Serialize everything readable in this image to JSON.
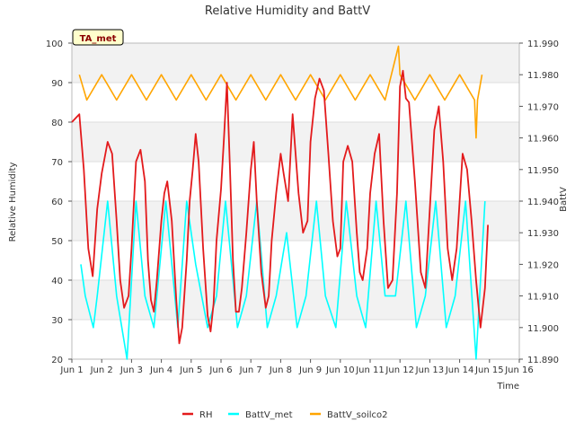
{
  "chart_data": {
    "type": "line",
    "title": "Relative Humidity and BattV",
    "xlabel": "Time",
    "ylabel_left": "Relative Humidity",
    "ylabel_right": "BattV",
    "annotation": "TA_met",
    "x_range": [
      1,
      16
    ],
    "x_ticks": [
      "Jun 1",
      "Jun 2",
      "Jun 3",
      "Jun 4",
      "Jun 5",
      "Jun 6",
      "Jun 7",
      "Jun 8",
      "Jun 9",
      "Jun 10",
      "Jun 11",
      "Jun 12",
      "Jun 13",
      "Jun 14",
      "Jun 15",
      "Jun 16"
    ],
    "y_left_range": [
      20,
      100
    ],
    "y_left_ticks": [
      "20",
      "30",
      "40",
      "50",
      "60",
      "70",
      "80",
      "90",
      "100"
    ],
    "y_right_range": [
      11.89,
      11.99
    ],
    "y_right_ticks": [
      "11.890",
      "11.900",
      "11.910",
      "11.920",
      "11.930",
      "11.940",
      "11.950",
      "11.960",
      "11.970",
      "11.980",
      "11.990"
    ],
    "grid": true,
    "legend_position": "bottom",
    "colors": {
      "RH": "#e31a1c",
      "BattV_met": "#00ffff",
      "BattV_soilco2": "#ffa500",
      "band": "#f2f2f2",
      "grid": "#dddddd"
    },
    "series": [
      {
        "name": "RH",
        "axis": "left",
        "x": [
          1.0,
          1.25,
          1.4,
          1.55,
          1.7,
          1.85,
          2.0,
          2.2,
          2.35,
          2.5,
          2.62,
          2.75,
          2.9,
          3.0,
          3.15,
          3.3,
          3.45,
          3.55,
          3.65,
          3.75,
          3.85,
          4.0,
          4.1,
          4.2,
          4.35,
          4.5,
          4.6,
          4.7,
          4.85,
          4.95,
          5.05,
          5.15,
          5.25,
          5.4,
          5.55,
          5.65,
          5.75,
          5.85,
          6.0,
          6.1,
          6.2,
          6.3,
          6.4,
          6.5,
          6.6,
          6.7,
          6.85,
          7.0,
          7.1,
          7.2,
          7.35,
          7.5,
          7.6,
          7.7,
          7.85,
          8.0,
          8.1,
          8.25,
          8.4,
          8.5,
          8.6,
          8.75,
          8.9,
          9.0,
          9.15,
          9.3,
          9.45,
          9.6,
          9.75,
          9.9,
          10.0,
          10.1,
          10.25,
          10.4,
          10.55,
          10.65,
          10.75,
          10.9,
          11.0,
          11.15,
          11.3,
          11.45,
          11.6,
          11.75,
          11.9,
          12.0,
          12.1,
          12.2,
          12.3,
          12.5,
          12.7,
          12.85,
          13.0,
          13.15,
          13.3,
          13.45,
          13.6,
          13.75,
          13.9,
          14.0,
          14.1,
          14.25,
          14.4,
          14.55,
          14.7,
          14.85,
          14.95
        ],
        "values": [
          80,
          82,
          68,
          48,
          41,
          58,
          67,
          75,
          72,
          55,
          40,
          33,
          36,
          48,
          70,
          73,
          65,
          45,
          35,
          32,
          40,
          55,
          62,
          65,
          55,
          35,
          24,
          28,
          45,
          60,
          68,
          77,
          70,
          48,
          31,
          27,
          34,
          50,
          63,
          76,
          90,
          68,
          45,
          32,
          32,
          38,
          52,
          68,
          75,
          60,
          42,
          33,
          36,
          50,
          62,
          72,
          67,
          60,
          82,
          72,
          62,
          52,
          55,
          75,
          86,
          91,
          88,
          72,
          55,
          46,
          48,
          70,
          74,
          70,
          52,
          42,
          40,
          48,
          62,
          72,
          77,
          55,
          38,
          40,
          62,
          89,
          93,
          86,
          85,
          65,
          42,
          38,
          58,
          78,
          84,
          70,
          48,
          40,
          48,
          60,
          72,
          68,
          55,
          40,
          28,
          38,
          54
        ]
      },
      {
        "name": "BattV_met",
        "axis": "left",
        "x": [
          1.3,
          1.45,
          1.72,
          1.85,
          2.2,
          2.5,
          2.85,
          3.15,
          3.45,
          3.75,
          3.85,
          4.15,
          4.55,
          4.85,
          5.15,
          5.55,
          5.85,
          6.15,
          6.55,
          6.85,
          7.2,
          7.55,
          7.85,
          8.2,
          8.55,
          8.85,
          9.2,
          9.5,
          9.85,
          10.2,
          10.55,
          10.85,
          11.2,
          11.5,
          11.85,
          12.2,
          12.55,
          12.85,
          13.2,
          13.55,
          13.85,
          14.2,
          14.55,
          14.85
        ],
        "values": [
          44,
          36,
          28,
          36,
          60,
          36,
          20,
          60,
          36,
          28,
          36,
          60,
          28,
          60,
          44,
          28,
          36,
          60,
          28,
          36,
          60,
          28,
          36,
          52,
          28,
          36,
          60,
          36,
          28,
          60,
          36,
          28,
          60,
          36,
          36,
          60,
          28,
          36,
          60,
          28,
          36,
          60,
          20,
          60
        ]
      },
      {
        "name": "BattV_soilco2",
        "axis": "right",
        "x": [
          1.25,
          1.5,
          2.0,
          2.5,
          3.0,
          3.5,
          4.0,
          4.5,
          5.0,
          5.5,
          6.0,
          6.5,
          7.0,
          7.5,
          8.0,
          8.5,
          9.0,
          9.5,
          10.0,
          10.5,
          11.0,
          11.5,
          11.95,
          12.0,
          12.5,
          13.0,
          13.5,
          14.0,
          14.5,
          14.55,
          14.6,
          14.75
        ],
        "values": [
          11.98,
          11.972,
          11.98,
          11.972,
          11.98,
          11.972,
          11.98,
          11.972,
          11.98,
          11.972,
          11.98,
          11.972,
          11.98,
          11.972,
          11.98,
          11.972,
          11.98,
          11.972,
          11.98,
          11.972,
          11.98,
          11.972,
          11.989,
          11.98,
          11.972,
          11.98,
          11.972,
          11.98,
          11.972,
          11.96,
          11.972,
          11.98
        ]
      }
    ]
  }
}
